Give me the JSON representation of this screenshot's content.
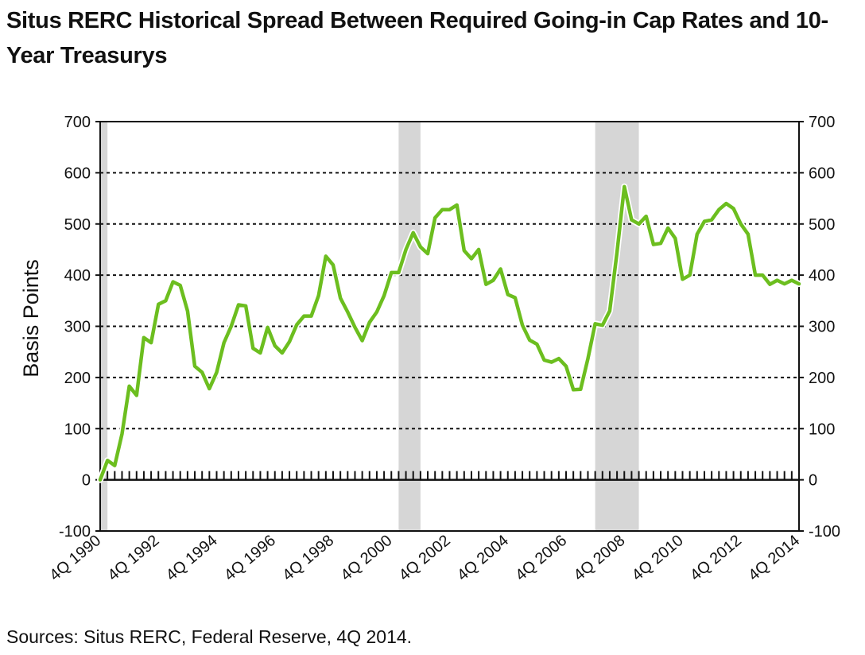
{
  "title": "Situs RERC Historical Spread Between Required Going-in Cap Rates and 10-Year Treasurys",
  "source": "Sources: Situs RERC, Federal Reserve, 4Q 2014.",
  "chart_data": {
    "type": "line",
    "title": "Situs RERC Historical Spread Between Required Going-in Cap Rates and 10-Year Treasurys",
    "ylabel": "Basis Points",
    "xlabel": "",
    "ylim": [
      -100,
      700
    ],
    "yticks": [
      -100,
      0,
      100,
      200,
      300,
      400,
      500,
      600,
      700
    ],
    "yticks_right": [
      -100,
      0,
      100,
      200,
      300,
      400,
      500,
      600,
      700
    ],
    "grid": "dashed horizontal at 100-700",
    "line_color": "#6cbe1f",
    "shade_color": "#d6d6d6",
    "x_tick_labels": [
      "4Q 1990",
      "4Q 1992",
      "4Q 1994",
      "4Q 1996",
      "4Q 1998",
      "4Q 2000",
      "4Q 2002",
      "4Q 2004",
      "4Q 2006",
      "4Q 2008",
      "4Q 2010",
      "4Q 2012",
      "4Q 2014"
    ],
    "recession_shading": [
      {
        "start": "4Q 1990",
        "end": "1Q 1991"
      },
      {
        "start": "1Q 2001",
        "end": "4Q 2001"
      },
      {
        "start": "4Q 2007",
        "end": "2Q 2009"
      }
    ],
    "series": [
      {
        "name": "",
        "x": [
          "4Q 1990",
          "1Q 1991",
          "2Q 1991",
          "3Q 1991",
          "4Q 1991",
          "1Q 1992",
          "2Q 1992",
          "3Q 1992",
          "4Q 1992",
          "1Q 1993",
          "2Q 1993",
          "3Q 1993",
          "4Q 1993",
          "1Q 1994",
          "2Q 1994",
          "3Q 1994",
          "4Q 1994",
          "1Q 1995",
          "2Q 1995",
          "3Q 1995",
          "4Q 1995",
          "1Q 1996",
          "2Q 1996",
          "3Q 1996",
          "4Q 1996",
          "1Q 1997",
          "2Q 1997",
          "3Q 1997",
          "4Q 1997",
          "1Q 1998",
          "2Q 1998",
          "3Q 1998",
          "4Q 1998",
          "1Q 1999",
          "2Q 1999",
          "3Q 1999",
          "4Q 1999",
          "1Q 2000",
          "2Q 2000",
          "3Q 2000",
          "4Q 2000",
          "1Q 2001",
          "2Q 2001",
          "3Q 2001",
          "4Q 2001",
          "1Q 2002",
          "2Q 2002",
          "3Q 2002",
          "4Q 2002",
          "1Q 2003",
          "2Q 2003",
          "3Q 2003",
          "4Q 2003",
          "1Q 2004",
          "2Q 2004",
          "3Q 2004",
          "4Q 2004",
          "1Q 2005",
          "2Q 2005",
          "3Q 2005",
          "4Q 2005",
          "1Q 2006",
          "2Q 2006",
          "3Q 2006",
          "4Q 2006",
          "1Q 2007",
          "2Q 2007",
          "3Q 2007",
          "4Q 2007",
          "1Q 2008",
          "2Q 2008",
          "3Q 2008",
          "4Q 2008",
          "1Q 2009",
          "2Q 2009",
          "3Q 2009",
          "4Q 2009",
          "1Q 2010",
          "2Q 2010",
          "3Q 2010",
          "4Q 2010",
          "1Q 2011",
          "2Q 2011",
          "3Q 2011",
          "4Q 2011",
          "1Q 2012",
          "2Q 2012",
          "3Q 2012",
          "4Q 2012",
          "1Q 2013",
          "2Q 2013",
          "3Q 2013",
          "4Q 2013",
          "1Q 2014",
          "2Q 2014",
          "3Q 2014",
          "4Q 2014"
        ],
        "values": [
          0,
          38,
          28,
          90,
          183,
          165,
          278,
          268,
          343,
          350,
          387,
          380,
          330,
          222,
          210,
          178,
          210,
          268,
          300,
          342,
          340,
          257,
          248,
          298,
          262,
          248,
          270,
          303,
          320,
          320,
          360,
          437,
          420,
          355,
          328,
          298,
          272,
          308,
          328,
          360,
          405,
          405,
          450,
          483,
          455,
          442,
          512,
          528,
          528,
          537,
          448,
          432,
          450,
          382,
          390,
          412,
          362,
          356,
          302,
          273,
          265,
          234,
          230,
          237,
          222,
          176,
          177,
          237,
          305,
          302,
          330,
          445,
          573,
          508,
          500,
          515,
          460,
          462,
          492,
          472,
          392,
          400,
          480,
          505,
          508,
          528,
          540,
          530,
          500,
          480,
          400,
          400,
          382,
          390,
          383,
          390,
          383
        ]
      }
    ]
  }
}
